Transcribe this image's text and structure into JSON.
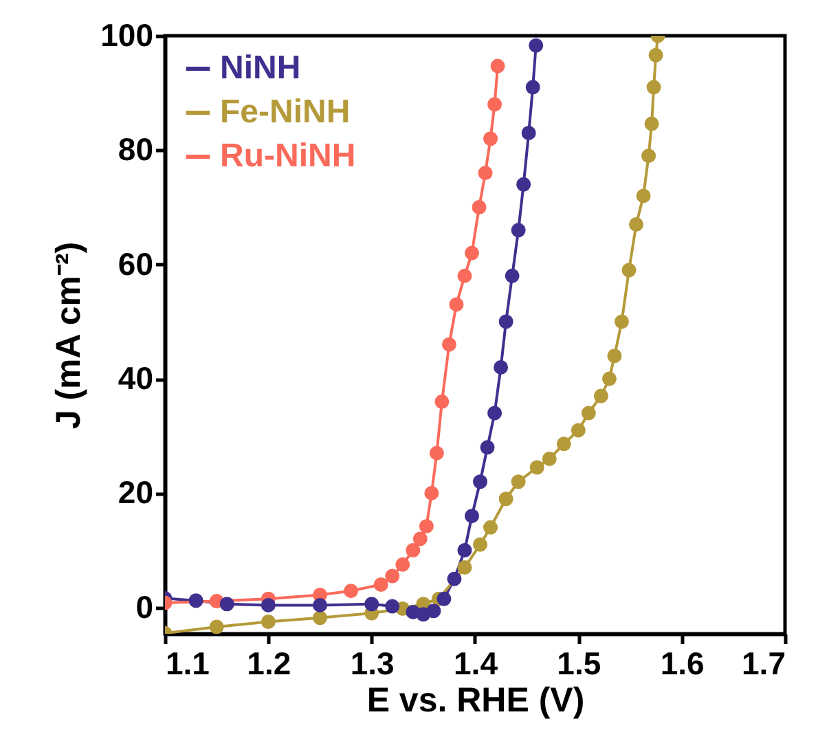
{
  "chart_data": {
    "type": "line",
    "xlabel": "E vs. RHE (V)",
    "ylabel": "J (mA cm⁻²)",
    "xlim": [
      1.1,
      1.7
    ],
    "ylim": [
      -4.6,
      100
    ],
    "xticks": [
      1.1,
      1.2,
      1.3,
      1.4,
      1.5,
      1.6,
      1.7
    ],
    "yticks": [
      0,
      20,
      40,
      60,
      80,
      100
    ],
    "grid": false,
    "legend": "top left",
    "marker": "circle",
    "line_style": "solid",
    "series": [
      {
        "name": "NiNH",
        "color": "#3f2f8f",
        "x": [
          1.1,
          1.13,
          1.16,
          1.2,
          1.25,
          1.3,
          1.32,
          1.34,
          1.35,
          1.36,
          1.37,
          1.38,
          1.39,
          1.397,
          1.405,
          1.412,
          1.419,
          1.425,
          1.43,
          1.436,
          1.442,
          1.447,
          1.452,
          1.456,
          1.459
        ],
        "values": [
          1.6,
          1.2,
          0.6,
          0.4,
          0.4,
          0.6,
          0.2,
          -0.8,
          -1.2,
          -0.6,
          1.5,
          5,
          10,
          16,
          22,
          28,
          34,
          42,
          50,
          58,
          66,
          74,
          83,
          91,
          98.3
        ]
      },
      {
        "name": "Fe-NiNH",
        "color": "#b59a3a",
        "x": [
          1.1,
          1.15,
          1.2,
          1.25,
          1.3,
          1.33,
          1.35,
          1.365,
          1.39,
          1.405,
          1.415,
          1.43,
          1.442,
          1.46,
          1.472,
          1.486,
          1.5,
          1.51,
          1.522,
          1.53,
          1.535,
          1.542,
          1.549,
          1.556,
          1.563,
          1.568,
          1.571,
          1.573,
          1.575,
          1.577
        ],
        "values": [
          -4.5,
          -3.4,
          -2.5,
          -1.8,
          -1,
          -0.2,
          0.6,
          1.5,
          7,
          11,
          14,
          19,
          22,
          24.5,
          26,
          28.6,
          31,
          34,
          37,
          40,
          44,
          50,
          59,
          67,
          72,
          79,
          84.6,
          91,
          96.6,
          100
        ]
      },
      {
        "name": "Ru-NiNH",
        "color": "#fa6a5a",
        "x": [
          1.1,
          1.15,
          1.2,
          1.25,
          1.28,
          1.309,
          1.32,
          1.33,
          1.34,
          1.347,
          1.353,
          1.358,
          1.363,
          1.368,
          1.375,
          1.382,
          1.39,
          1.397,
          1.404,
          1.41,
          1.415,
          1.419,
          1.422
        ],
        "values": [
          0.8,
          1.1,
          1.5,
          2.2,
          2.9,
          4,
          5.5,
          7.5,
          10,
          12,
          14.2,
          20,
          27,
          36,
          46,
          53,
          58,
          62,
          70,
          76,
          82,
          88,
          94.7
        ]
      }
    ]
  }
}
